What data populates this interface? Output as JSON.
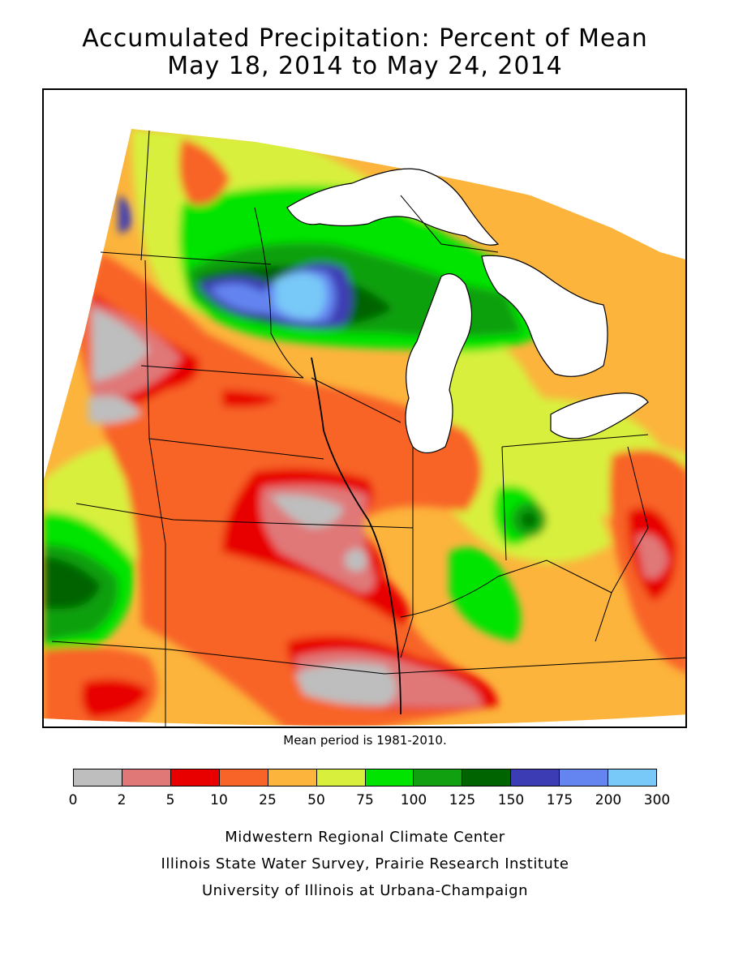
{
  "title": {
    "line1": "Accumulated Precipitation: Percent of Mean",
    "line2": "May 18, 2014 to May 24, 2014"
  },
  "mean_note": "Mean period is 1981-2010.",
  "legend": {
    "breaks": [
      "0",
      "2",
      "5",
      "10",
      "25",
      "50",
      "75",
      "100",
      "125",
      "150",
      "175",
      "200",
      "300"
    ],
    "colors": [
      "#bebebe",
      "#e07878",
      "#e80000",
      "#f86428",
      "#fcb43c",
      "#d8f03c",
      "#00e400",
      "#10a010",
      "#006400",
      "#3c3cb4",
      "#6484f0",
      "#78c8f8"
    ]
  },
  "credits": [
    "Midwestern Regional Climate Center",
    "Illinois State Water Survey, Prairie Research Institute",
    "University of Illinois at Urbana-Champaign"
  ],
  "map_colors": {
    "lake": "#ffffff",
    "outside": "#ffffff",
    "boundary": "#000000"
  }
}
